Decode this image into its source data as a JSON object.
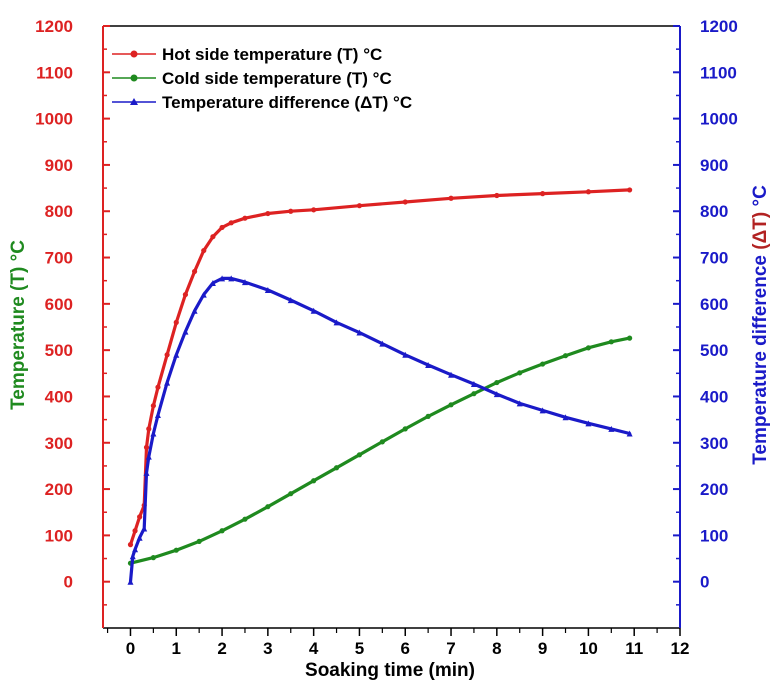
{
  "chart_data": {
    "type": "line",
    "xlabel": "Soaking time (min)",
    "ylabel_left": "Temperature (T) °C",
    "ylabel_left_parts": [
      "Temperature ",
      "(T)",
      " °C"
    ],
    "ylabel_right": "Temperature difference (ΔT) °C",
    "ylabel_right_parts": [
      "Temperature difference ",
      "(ΔT)",
      " °C"
    ],
    "xlim": [
      -0.6,
      12
    ],
    "ylim_left": [
      -100,
      1200
    ],
    "ylim_right": [
      -100,
      1200
    ],
    "x_ticks": [
      0,
      1,
      2,
      3,
      4,
      5,
      6,
      7,
      8,
      9,
      10,
      11,
      12
    ],
    "y_ticks": [
      0,
      100,
      200,
      300,
      400,
      500,
      600,
      700,
      800,
      900,
      1000,
      1100,
      1200
    ],
    "grid": false,
    "legend_position": "top-left",
    "colors": {
      "hot": "#dd2222",
      "cold": "#1f8a1f",
      "delta": "#1a1ac8",
      "left_axis": "#dd2222",
      "right_axis": "#1a1ac8",
      "left_title": "#1f8a1f",
      "right_title": "#1a1ac8",
      "right_title_highlight": "#b22222",
      "frame": "#000000"
    },
    "series": [
      {
        "name": "Hot side temperature (T) °C",
        "key": "hot",
        "marker": "circle",
        "x": [
          0,
          0.1,
          0.2,
          0.3,
          0.35,
          0.4,
          0.5,
          0.6,
          0.8,
          1.0,
          1.2,
          1.4,
          1.6,
          1.8,
          2.0,
          2.2,
          2.5,
          3.0,
          3.5,
          4,
          5,
          6,
          7,
          8,
          9,
          10,
          10.9
        ],
        "y": [
          80,
          110,
          140,
          165,
          290,
          330,
          380,
          420,
          490,
          560,
          620,
          670,
          715,
          745,
          765,
          775,
          785,
          795,
          800,
          803,
          812,
          820,
          828,
          834,
          838,
          842,
          846
        ]
      },
      {
        "name": "Cold side temperature (T) °C",
        "key": "cold",
        "marker": "circle",
        "x": [
          0,
          0.5,
          1,
          1.5,
          2,
          2.5,
          3,
          3.5,
          4,
          4.5,
          5,
          5.5,
          6,
          6.5,
          7,
          7.5,
          8,
          8.5,
          9,
          9.5,
          10,
          10.5,
          10.9
        ],
        "y": [
          40,
          52,
          68,
          87,
          110,
          135,
          162,
          190,
          218,
          246,
          274,
          302,
          330,
          357,
          382,
          406,
          430,
          451,
          470,
          488,
          505,
          518,
          526
        ]
      },
      {
        "name": "Temperature difference (ΔT) °C",
        "key": "delta",
        "marker": "triangle",
        "x": [
          0,
          0.05,
          0.1,
          0.2,
          0.3,
          0.35,
          0.4,
          0.5,
          0.6,
          0.8,
          1.0,
          1.2,
          1.4,
          1.6,
          1.8,
          2.0,
          2.2,
          2.5,
          3,
          3.5,
          4,
          4.5,
          5,
          5.5,
          6,
          6.5,
          7,
          7.5,
          8,
          8.5,
          9,
          9.5,
          10,
          10.5,
          10.9
        ],
        "y": [
          0,
          55,
          70,
          95,
          115,
          235,
          270,
          320,
          360,
          430,
          490,
          540,
          585,
          620,
          645,
          655,
          655,
          647,
          630,
          608,
          585,
          560,
          538,
          514,
          490,
          468,
          447,
          427,
          405,
          385,
          370,
          355,
          342,
          330,
          320
        ]
      }
    ]
  }
}
